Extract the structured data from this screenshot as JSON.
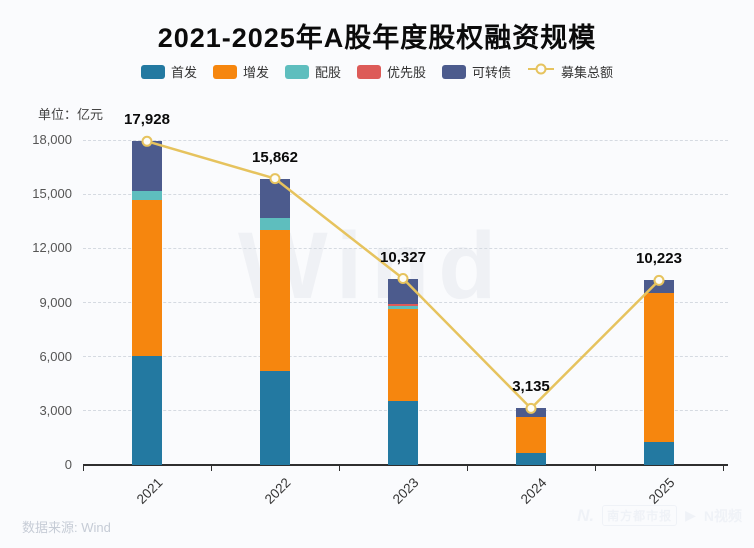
{
  "title": "2021-2025年A股年度股权融资规模",
  "unit_label": "单位：亿元",
  "source_label": "数据来源: Wind",
  "watermark_center": "Wind",
  "watermark_bottom_right": {
    "logo": "N.",
    "brand": "南方都市报",
    "play_icon": "▶",
    "video": "N视频"
  },
  "colors": {
    "background": "#fafbfd",
    "grid": "#d5dae1",
    "axis": "#2f2f2f",
    "title_text": "#0b0b0b",
    "value_label_text": "#0a0a0a",
    "tick_text": "#555555",
    "watermark": "#e9ebf0"
  },
  "chart_data": {
    "type": "bar",
    "subtype": "stacked-bar-with-line",
    "title": "2021-2025年A股年度股权融资规模",
    "ylabel": "单位：亿元",
    "categories": [
      "2021",
      "2022",
      "2023",
      "2024",
      "2025"
    ],
    "series": [
      {
        "name": "首发",
        "semantic": "ipo",
        "color": "#2379a1",
        "values": [
          6030,
          5222,
          3565,
          640,
          1290
        ]
      },
      {
        "name": "增发",
        "semantic": "follow-on",
        "color": "#f6860e",
        "values": [
          8666,
          7780,
          5080,
          2010,
          8210
        ]
      },
      {
        "name": "配股",
        "semantic": "rights-issue",
        "color": "#5ebebe",
        "values": [
          460,
          670,
          180,
          0,
          0
        ]
      },
      {
        "name": "优先股",
        "semantic": "preferred",
        "color": "#dd5b58",
        "values": [
          0,
          0,
          70,
          0,
          0
        ]
      },
      {
        "name": "可转债",
        "semantic": "convertible",
        "color": "#4c5b8d",
        "values": [
          2772,
          2190,
          1432,
          485,
          723
        ]
      }
    ],
    "line_series": {
      "name": "募集总额",
      "semantic": "total-raised",
      "color": "#e6c35e",
      "values": [
        17928,
        15862,
        10327,
        3135,
        10223
      ]
    },
    "total_labels": [
      "17,928",
      "15,862",
      "10,327",
      "3,135",
      "10,223"
    ],
    "y_ticks": [
      "0",
      "3,000",
      "6,000",
      "9,000",
      "12,000",
      "15,000",
      "18,000"
    ],
    "ylim": [
      0,
      18000
    ],
    "grid": true,
    "legend_position": "top"
  }
}
